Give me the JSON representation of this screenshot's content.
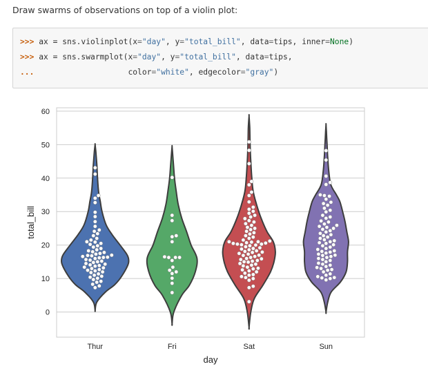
{
  "intro_text": "Draw swarms of observations on top of a violin plot:",
  "code": {
    "prompt1": ">>>",
    "prompt2": ">>>",
    "prompt3": "...",
    "l1_a": "ax = sns.violinplot(x",
    "l1_b": "\"day\"",
    "l1_c": ", y",
    "l1_d": "\"total_bill\"",
    "l1_e": ", data",
    "l1_f": "tips, inner",
    "l1_g": "None",
    "l1_h": ")",
    "l2_a": "ax = sns.swarmplot(x",
    "l2_b": "\"day\"",
    "l2_c": ", y",
    "l2_d": "\"total_bill\"",
    "l2_e": ", data",
    "l2_f": "tips,",
    "l3_a": "                   color",
    "l3_b": "\"white\"",
    "l3_c": ", edgecolor",
    "l3_d": "\"gray\"",
    "l3_e": ")",
    "eq": "="
  },
  "chart_data": {
    "type": "violin+swarm",
    "xlabel": "day",
    "ylabel": "total_bill",
    "categories": [
      "Thur",
      "Fri",
      "Sat",
      "Sun"
    ],
    "ylim": [
      -7.5,
      61
    ],
    "yticks": [
      0,
      10,
      20,
      30,
      40,
      50,
      60
    ],
    "grid": true,
    "colors": [
      "#4c72b0",
      "#55a868",
      "#c44e52",
      "#8172b2"
    ],
    "violins": [
      {
        "ymin": 0.5,
        "ymax": 50,
        "profile": [
          [
            0.5,
            0.0
          ],
          [
            3,
            0.05
          ],
          [
            6,
            0.3
          ],
          [
            8,
            0.55
          ],
          [
            10,
            0.72
          ],
          [
            13,
            0.9
          ],
          [
            15,
            0.97
          ],
          [
            17,
            0.93
          ],
          [
            20,
            0.72
          ],
          [
            23,
            0.5
          ],
          [
            26,
            0.32
          ],
          [
            30,
            0.2
          ],
          [
            33,
            0.15
          ],
          [
            36,
            0.1
          ],
          [
            40,
            0.07
          ],
          [
            44,
            0.05
          ],
          [
            48,
            0.02
          ],
          [
            50,
            0.0
          ]
        ]
      },
      {
        "ymin": -3.5,
        "ymax": 49.5,
        "profile": [
          [
            -3.5,
            0.0
          ],
          [
            0,
            0.05
          ],
          [
            5,
            0.28
          ],
          [
            8,
            0.5
          ],
          [
            12,
            0.67
          ],
          [
            16,
            0.72
          ],
          [
            20,
            0.55
          ],
          [
            24,
            0.42
          ],
          [
            28,
            0.28
          ],
          [
            32,
            0.18
          ],
          [
            36,
            0.12
          ],
          [
            40,
            0.07
          ],
          [
            44,
            0.04
          ],
          [
            48,
            0.01
          ],
          [
            49.5,
            0.0
          ]
        ]
      },
      {
        "ymin": -4.5,
        "ymax": 58.5,
        "profile": [
          [
            -4.5,
            0.0
          ],
          [
            0,
            0.05
          ],
          [
            4,
            0.15
          ],
          [
            8,
            0.4
          ],
          [
            12,
            0.62
          ],
          [
            15,
            0.72
          ],
          [
            18,
            0.76
          ],
          [
            21,
            0.7
          ],
          [
            24,
            0.52
          ],
          [
            28,
            0.35
          ],
          [
            32,
            0.22
          ],
          [
            36,
            0.12
          ],
          [
            40,
            0.08
          ],
          [
            45,
            0.05
          ],
          [
            50,
            0.03
          ],
          [
            55,
            0.02
          ],
          [
            58.5,
            0.0
          ]
        ]
      },
      {
        "ymin": 0,
        "ymax": 56,
        "profile": [
          [
            0,
            0.0
          ],
          [
            3,
            0.05
          ],
          [
            6,
            0.15
          ],
          [
            9,
            0.42
          ],
          [
            12,
            0.58
          ],
          [
            15,
            0.62
          ],
          [
            18,
            0.62
          ],
          [
            21,
            0.65
          ],
          [
            24,
            0.6
          ],
          [
            27,
            0.55
          ],
          [
            30,
            0.48
          ],
          [
            33,
            0.4
          ],
          [
            35,
            0.3
          ],
          [
            38,
            0.14
          ],
          [
            42,
            0.08
          ],
          [
            46,
            0.05
          ],
          [
            50,
            0.03
          ],
          [
            54,
            0.01
          ],
          [
            56,
            0.0
          ]
        ]
      }
    ],
    "swarm_y": [
      [
        7.3,
        7.8,
        8.3,
        8.9,
        9.2,
        9.7,
        10.1,
        10.4,
        10.7,
        11.0,
        11.4,
        11.8,
        12.0,
        12.3,
        12.5,
        12.7,
        13.0,
        13.2,
        13.4,
        13.7,
        13.9,
        14.1,
        14.3,
        14.5,
        14.8,
        15.0,
        15.2,
        15.5,
        15.7,
        16.0,
        16.2,
        16.3,
        16.4,
        16.6,
        16.8,
        16.9,
        17.0,
        17.3,
        17.5,
        17.8,
        18.0,
        18.3,
        18.6,
        19.0,
        19.4,
        19.8,
        20.2,
        20.5,
        20.9,
        21.0,
        21.5,
        22.0,
        22.8,
        23.4,
        24.1,
        24.5,
        25.6,
        27.0,
        28.5,
        29.8,
        32.7,
        34.0,
        34.8,
        41.2,
        43.1
      ],
      [
        5.8,
        8.6,
        10.1,
        11.5,
        12.0,
        12.5,
        13.4,
        15.4,
        16.3,
        16.3,
        16.3,
        16.5,
        21.0,
        22.5,
        22.8,
        27.3,
        28.9,
        40.2
      ],
      [
        3.1,
        7.3,
        7.7,
        9.5,
        10.0,
        10.3,
        10.6,
        11.0,
        11.2,
        11.6,
        12.0,
        12.3,
        12.6,
        12.9,
        13.1,
        13.4,
        13.8,
        14.0,
        14.3,
        14.5,
        14.9,
        15.0,
        15.2,
        15.4,
        15.7,
        15.9,
        16.0,
        16.3,
        16.6,
        16.9,
        17.0,
        17.3,
        17.5,
        17.8,
        17.9,
        18.1,
        18.3,
        18.6,
        18.8,
        19.0,
        19.2,
        19.5,
        19.8,
        20.0,
        20.1,
        20.3,
        20.3,
        20.5,
        20.6,
        20.7,
        20.9,
        21.0,
        21.0,
        21.2,
        21.5,
        22.0,
        22.4,
        22.8,
        23.3,
        23.7,
        24.1,
        24.6,
        25.0,
        25.3,
        25.9,
        26.4,
        26.9,
        27.3,
        27.9,
        28.4,
        28.9,
        29.5,
        30.1,
        30.7,
        31.3,
        32.9,
        34.8,
        35.8,
        38.0,
        39.0,
        44.3,
        48.3,
        50.8
      ],
      [
        9.6,
        10.0,
        10.2,
        10.3,
        10.6,
        11.0,
        11.4,
        12.0,
        12.5,
        12.7,
        13.0,
        13.3,
        13.6,
        14.0,
        14.3,
        14.6,
        15.0,
        15.4,
        15.7,
        16.0,
        16.3,
        16.6,
        16.9,
        17.0,
        17.3,
        17.6,
        17.9,
        18.1,
        18.3,
        18.7,
        19.0,
        19.4,
        19.8,
        20.1,
        20.5,
        20.7,
        21.0,
        21.3,
        21.6,
        22.0,
        22.4,
        22.8,
        23.1,
        23.5,
        23.9,
        24.3,
        24.7,
        25.0,
        25.3,
        25.6,
        25.9,
        26.3,
        26.9,
        27.2,
        28.0,
        28.4,
        28.9,
        29.9,
        30.4,
        31.0,
        31.9,
        32.4,
        32.8,
        33.7,
        34.6,
        34.8,
        35.0,
        38.1,
        38.7,
        40.6,
        45.4,
        48.2
      ]
    ]
  }
}
